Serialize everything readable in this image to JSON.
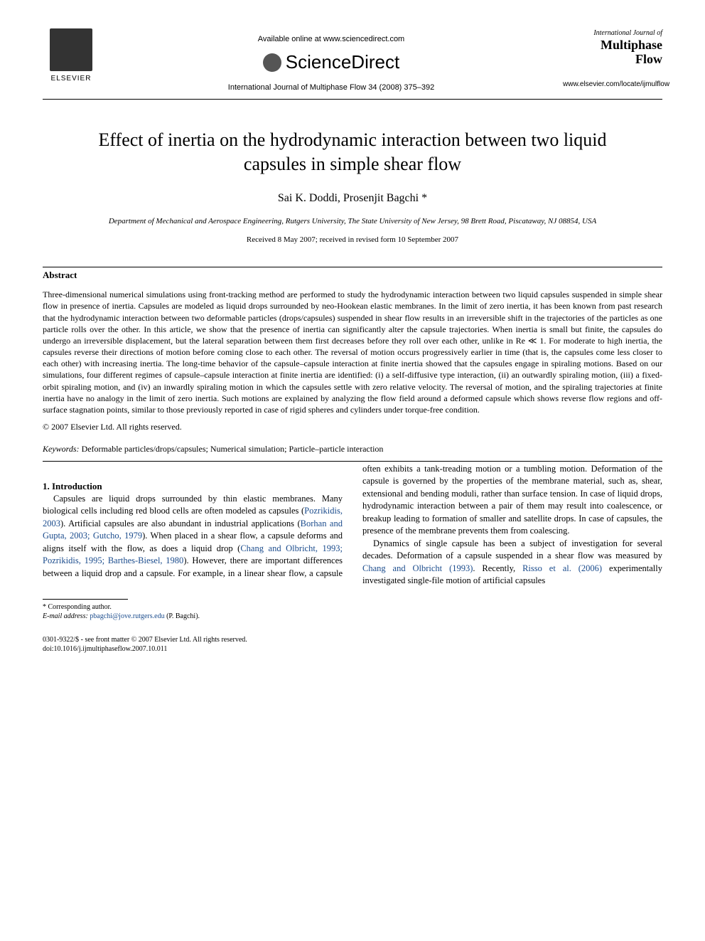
{
  "header": {
    "elsevier_label": "ELSEVIER",
    "available_online": "Available online at www.sciencedirect.com",
    "sciencedirect": "ScienceDirect",
    "citation": "International Journal of Multiphase Flow 34 (2008) 375–392",
    "journal_prefix": "International Journal of",
    "journal_name_line1": "Multiphase",
    "journal_name_line2": "Flow",
    "journal_url": "www.elsevier.com/locate/ijmulflow"
  },
  "article": {
    "title": "Effect of inertia on the hydrodynamic interaction between two liquid capsules in simple shear flow",
    "authors": "Sai K. Doddi, Prosenjit Bagchi *",
    "affiliation": "Department of Mechanical and Aerospace Engineering, Rutgers University, The State University of New Jersey, 98 Brett Road, Piscataway, NJ 08854, USA",
    "dates": "Received 8 May 2007; received in revised form 10 September 2007"
  },
  "abstract": {
    "heading": "Abstract",
    "text": "Three-dimensional numerical simulations using front-tracking method are performed to study the hydrodynamic interaction between two liquid capsules suspended in simple shear flow in presence of inertia. Capsules are modeled as liquid drops surrounded by neo-Hookean elastic membranes. In the limit of zero inertia, it has been known from past research that the hydrodynamic interaction between two deformable particles (drops/capsules) suspended in shear flow results in an irreversible shift in the trajectories of the particles as one particle rolls over the other. In this article, we show that the presence of inertia can significantly alter the capsule trajectories. When inertia is small but finite, the capsules do undergo an irreversible displacement, but the lateral separation between them first decreases before they roll over each other, unlike in Re ≪ 1. For moderate to high inertia, the capsules reverse their directions of motion before coming close to each other. The reversal of motion occurs progressively earlier in time (that is, the capsules come less closer to each other) with increasing inertia. The long-time behavior of the capsule–capsule interaction at finite inertia showed that the capsules engage in spiraling motions. Based on our simulations, four different regimes of capsule–capsule interaction at finite inertia are identified: (i) a self-diffusive type interaction, (ii) an outwardly spiraling motion, (iii) a fixed-orbit spiraling motion, and (iv) an inwardly spiraling motion in which the capsules settle with zero relative velocity. The reversal of motion, and the spiraling trajectories at finite inertia have no analogy in the limit of zero inertia. Such motions are explained by analyzing the flow field around a deformed capsule which shows reverse flow regions and off-surface stagnation points, similar to those previously reported in case of rigid spheres and cylinders under torque-free condition.",
    "copyright": "© 2007 Elsevier Ltd. All rights reserved."
  },
  "keywords": {
    "label": "Keywords:",
    "text": "Deformable particles/drops/capsules; Numerical simulation; Particle–particle interaction"
  },
  "intro": {
    "heading": "1. Introduction",
    "p1_a": "Capsules are liquid drops surrounded by thin elastic membranes. Many biological cells including red blood cells are often modeled as capsules (",
    "ref1": "Pozrikidis, 2003",
    "p1_b": "). Artificial capsules are also abundant in industrial applications (",
    "ref2": "Borhan and Gupta, 2003; Gutcho, 1979",
    "p1_c": "). When placed in a shear flow, a capsule deforms and aligns itself with the flow, as does a liquid drop (",
    "ref3": "Chang and Olbricht, 1993; Pozrikidis, 1995; Barthes-Biesel, 1980",
    "p1_d": "). However, there are important differences between a liquid drop and a cap",
    "p1_e": "sule. For example, in a linear shear flow, a capsule often exhibits a tank-treading motion or a tumbling motion. Deformation of the capsule is governed by the properties of the membrane material, such as, shear, extensional and bending moduli, rather than surface tension. In case of liquid drops, hydrodynamic interaction between a pair of them may result into coalescence, or breakup leading to formation of smaller and satellite drops. In case of capsules, the presence of the membrane prevents them from coalescing.",
    "p2_a": "Dynamics of single capsule has been a subject of investigation for several decades. Deformation of a capsule suspended in a shear flow was measured by ",
    "ref4": "Chang and Olbricht (1993)",
    "p2_b": ". Recently, ",
    "ref5": "Risso et al. (2006)",
    "p2_c": " experimentally investigated single-file motion of artificial capsules"
  },
  "footnote": {
    "corresponding": "* Corresponding author.",
    "email_label": "E-mail address:",
    "email": "pbagchi@jove.rutgers.edu",
    "email_name": "(P. Bagchi)."
  },
  "footer": {
    "issn": "0301-9322/$ - see front matter © 2007 Elsevier Ltd. All rights reserved.",
    "doi": "doi:10.1016/j.ijmultiphaseflow.2007.10.011"
  },
  "colors": {
    "link": "#1a4b8c",
    "text": "#000000",
    "background": "#ffffff"
  }
}
